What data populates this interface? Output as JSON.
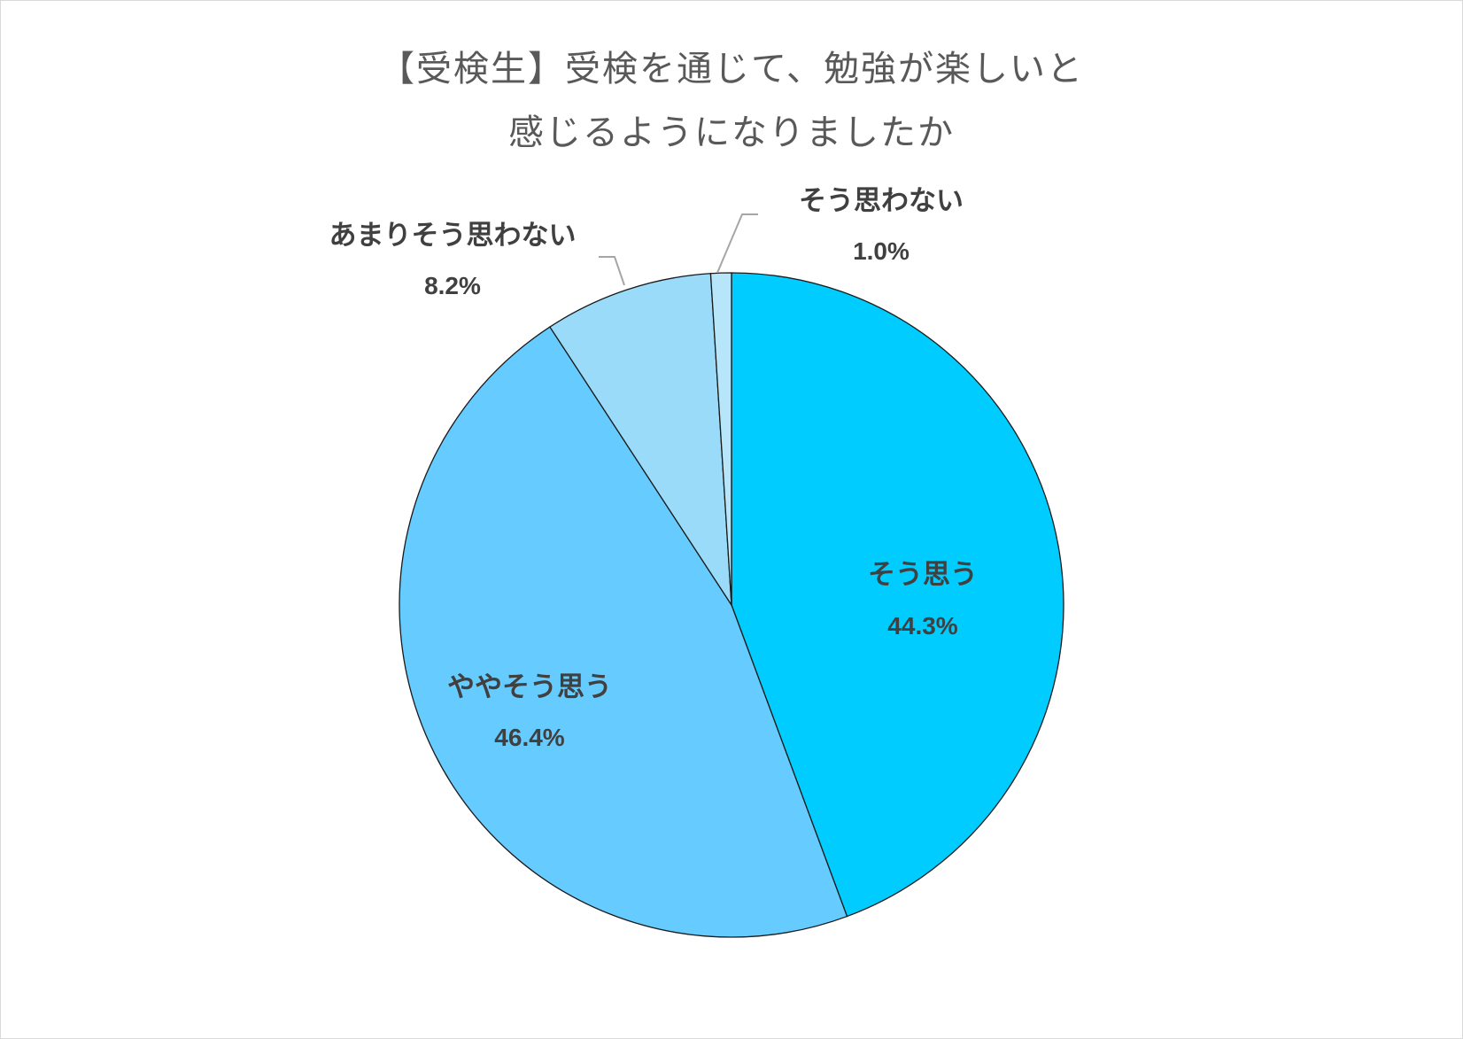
{
  "chart_data": {
    "type": "pie",
    "title_line1": "【受検生】受検を通じて、勉強が楽しいと",
    "title_line2": "感じるようになりましたか",
    "slices": [
      {
        "label": "そう思う",
        "value": 44.3,
        "value_label": "44.3%",
        "color": "#00ccff"
      },
      {
        "label": "ややそう思う",
        "value": 46.4,
        "value_label": "46.4%",
        "color": "#66ccff"
      },
      {
        "label": "あまりそう思わない",
        "value": 8.2,
        "value_label": "8.2%",
        "color": "#99dbf8"
      },
      {
        "label": "そう思わない",
        "value": 1.0,
        "value_label": "1.0%",
        "color": "#b7e6fa"
      }
    ],
    "start_angle_deg": 0,
    "direction": "clockwise",
    "legend": "none"
  }
}
